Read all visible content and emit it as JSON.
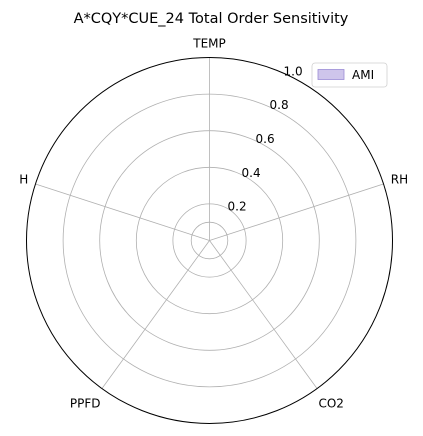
{
  "chart_data": {
    "type": "radar",
    "title": "A*CQY*CUE_24 Total Order Sensitivity",
    "axes": [
      "TEMP",
      "RH",
      "CO2",
      "PPFD",
      "H"
    ],
    "radial_ticks": [
      0.2,
      0.4,
      0.6,
      0.8,
      1.0
    ],
    "radial_tick_labels": [
      "0.2",
      "0.4",
      "0.6",
      "0.8",
      "1.0"
    ],
    "rlim": [
      0,
      1.0
    ],
    "grid": true,
    "legend": {
      "placement": "top-right",
      "entries": [
        "AMI"
      ]
    },
    "series": [
      {
        "name": "AMI",
        "values": [
          0,
          0,
          0,
          0,
          0
        ],
        "color": "#b3a6e0"
      }
    ],
    "colors": {
      "grid": "#b0b0b0",
      "frame": "#000000",
      "series_fill": "#b3a6e0"
    }
  }
}
